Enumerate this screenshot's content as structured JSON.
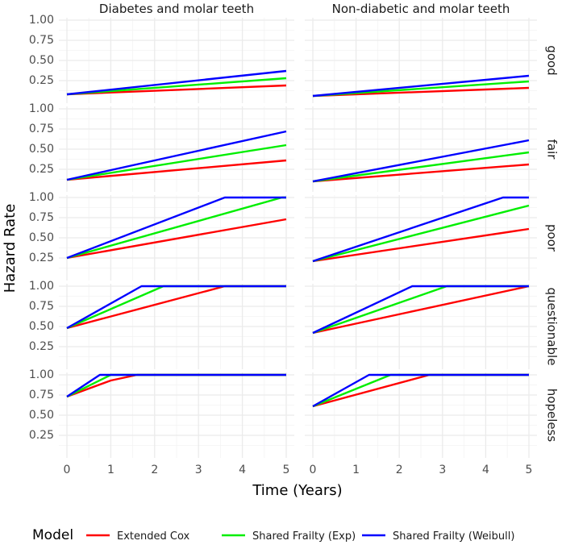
{
  "chart_data": {
    "type": "line",
    "xlabel": "Time (Years)",
    "ylabel": "Hazard Rate",
    "xlim": [
      0,
      5
    ],
    "ylim": [
      0,
      1
    ],
    "x_ticks": [
      "0",
      "1",
      "2",
      "3",
      "4",
      "5"
    ],
    "y_ticks": [
      "0.25",
      "0.50",
      "0.75",
      "1.00"
    ],
    "columns": [
      "Diabetes and molar teeth",
      "Non-diabetic and molar teeth"
    ],
    "rows": [
      "good",
      "fair",
      "poor",
      "questionable",
      "hopeless"
    ],
    "legend": {
      "title": "Model",
      "entries": [
        {
          "name": "Extended Cox",
          "color": "#ff0000"
        },
        {
          "name": "Shared Frailty (Exp)",
          "color": "#00ee00"
        },
        {
          "name": "Shared Frailty (Weibull)",
          "color": "#0000ff"
        }
      ]
    },
    "panels": [
      {
        "column": "Diabetes and molar teeth",
        "row": "good",
        "series": [
          {
            "name": "Extended Cox",
            "points": [
              [
                0,
                0.08
              ],
              [
                5,
                0.19
              ]
            ]
          },
          {
            "name": "Shared Frailty (Exp)",
            "points": [
              [
                0,
                0.08
              ],
              [
                5,
                0.28
              ]
            ]
          },
          {
            "name": "Shared Frailty (Weibull)",
            "points": [
              [
                0,
                0.08
              ],
              [
                5,
                0.37
              ]
            ]
          }
        ]
      },
      {
        "column": "Non-diabetic and molar teeth",
        "row": "good",
        "series": [
          {
            "name": "Extended Cox",
            "points": [
              [
                0,
                0.06
              ],
              [
                5,
                0.16
              ]
            ]
          },
          {
            "name": "Shared Frailty (Exp)",
            "points": [
              [
                0,
                0.06
              ],
              [
                5,
                0.24
              ]
            ]
          },
          {
            "name": "Shared Frailty (Weibull)",
            "points": [
              [
                0,
                0.06
              ],
              [
                5,
                0.31
              ]
            ]
          }
        ]
      },
      {
        "column": "Diabetes and molar teeth",
        "row": "fair",
        "series": [
          {
            "name": "Extended Cox",
            "points": [
              [
                0,
                0.12
              ],
              [
                5,
                0.36
              ]
            ]
          },
          {
            "name": "Shared Frailty (Exp)",
            "points": [
              [
                0,
                0.12
              ],
              [
                5,
                0.55
              ]
            ]
          },
          {
            "name": "Shared Frailty (Weibull)",
            "points": [
              [
                0,
                0.12
              ],
              [
                5,
                0.72
              ]
            ]
          }
        ]
      },
      {
        "column": "Non-diabetic and molar teeth",
        "row": "fair",
        "series": [
          {
            "name": "Extended Cox",
            "points": [
              [
                0,
                0.1
              ],
              [
                5,
                0.31
              ]
            ]
          },
          {
            "name": "Shared Frailty (Exp)",
            "points": [
              [
                0,
                0.1
              ],
              [
                5,
                0.46
              ]
            ]
          },
          {
            "name": "Shared Frailty (Weibull)",
            "points": [
              [
                0,
                0.1
              ],
              [
                5,
                0.61
              ]
            ]
          }
        ]
      },
      {
        "column": "Diabetes and molar teeth",
        "row": "poor",
        "series": [
          {
            "name": "Extended Cox",
            "points": [
              [
                0,
                0.25
              ],
              [
                5,
                0.73
              ]
            ]
          },
          {
            "name": "Shared Frailty (Exp)",
            "points": [
              [
                0,
                0.25
              ],
              [
                4.9,
                1.0
              ],
              [
                5,
                1.0
              ]
            ]
          },
          {
            "name": "Shared Frailty (Weibull)",
            "points": [
              [
                0,
                0.25
              ],
              [
                3.6,
                1.0
              ],
              [
                5,
                1.0
              ]
            ]
          }
        ]
      },
      {
        "column": "Non-diabetic and molar teeth",
        "row": "poor",
        "series": [
          {
            "name": "Extended Cox",
            "points": [
              [
                0,
                0.21
              ],
              [
                5,
                0.61
              ]
            ]
          },
          {
            "name": "Shared Frailty (Exp)",
            "points": [
              [
                0,
                0.21
              ],
              [
                5,
                0.9
              ]
            ]
          },
          {
            "name": "Shared Frailty (Weibull)",
            "points": [
              [
                0,
                0.21
              ],
              [
                4.4,
                1.0
              ],
              [
                5,
                1.0
              ]
            ]
          }
        ]
      },
      {
        "column": "Diabetes and molar teeth",
        "row": "questionable",
        "series": [
          {
            "name": "Extended Cox",
            "points": [
              [
                0,
                0.48
              ],
              [
                3.6,
                1.0
              ],
              [
                5,
                1.0
              ]
            ]
          },
          {
            "name": "Shared Frailty (Exp)",
            "points": [
              [
                0,
                0.48
              ],
              [
                2.2,
                1.0
              ],
              [
                5,
                1.0
              ]
            ]
          },
          {
            "name": "Shared Frailty (Weibull)",
            "points": [
              [
                0,
                0.48
              ],
              [
                1.7,
                1.0
              ],
              [
                5,
                1.0
              ]
            ]
          }
        ]
      },
      {
        "column": "Non-diabetic and molar teeth",
        "row": "questionable",
        "series": [
          {
            "name": "Extended Cox",
            "points": [
              [
                0,
                0.42
              ],
              [
                5,
                1.0
              ]
            ]
          },
          {
            "name": "Shared Frailty (Exp)",
            "points": [
              [
                0,
                0.42
              ],
              [
                3.1,
                1.0
              ],
              [
                5,
                1.0
              ]
            ]
          },
          {
            "name": "Shared Frailty (Weibull)",
            "points": [
              [
                0,
                0.42
              ],
              [
                2.3,
                1.0
              ],
              [
                5,
                1.0
              ]
            ]
          }
        ]
      },
      {
        "column": "Diabetes and molar teeth",
        "row": "hopeless",
        "series": [
          {
            "name": "Extended Cox",
            "points": [
              [
                0,
                0.73
              ],
              [
                1.0,
                0.93
              ],
              [
                1.6,
                1.0
              ],
              [
                5,
                1.0
              ]
            ]
          },
          {
            "name": "Shared Frailty (Exp)",
            "points": [
              [
                0,
                0.73
              ],
              [
                1.0,
                1.0
              ],
              [
                5,
                1.0
              ]
            ]
          },
          {
            "name": "Shared Frailty (Weibull)",
            "points": [
              [
                0,
                0.73
              ],
              [
                0.75,
                1.0
              ],
              [
                5,
                1.0
              ]
            ]
          }
        ]
      },
      {
        "column": "Non-diabetic and molar teeth",
        "row": "hopeless",
        "series": [
          {
            "name": "Extended Cox",
            "points": [
              [
                0,
                0.61
              ],
              [
                2.7,
                1.0
              ],
              [
                5,
                1.0
              ]
            ]
          },
          {
            "name": "Shared Frailty (Exp)",
            "points": [
              [
                0,
                0.61
              ],
              [
                1.8,
                1.0
              ],
              [
                5,
                1.0
              ]
            ]
          },
          {
            "name": "Shared Frailty (Weibull)",
            "points": [
              [
                0,
                0.61
              ],
              [
                1.3,
                1.0
              ],
              [
                5,
                1.0
              ]
            ]
          }
        ]
      }
    ]
  }
}
